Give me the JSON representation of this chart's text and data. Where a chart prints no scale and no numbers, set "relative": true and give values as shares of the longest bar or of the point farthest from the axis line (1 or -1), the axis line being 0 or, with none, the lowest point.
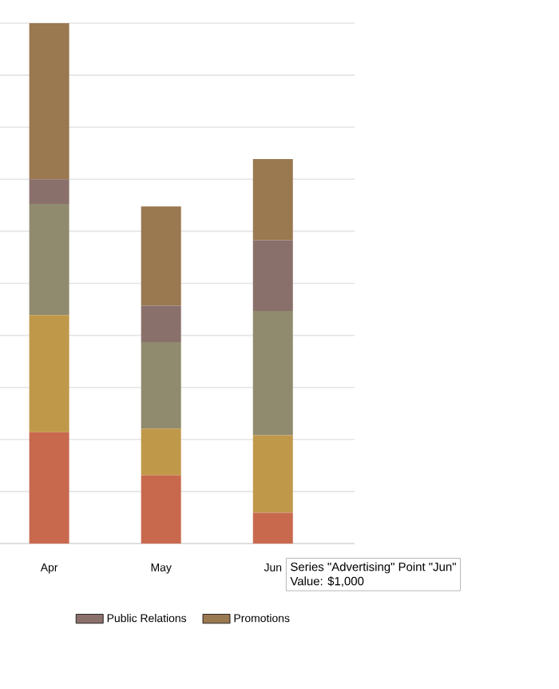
{
  "chart_data": {
    "type": "bar",
    "stacked": true,
    "relative": true,
    "grid": "y",
    "legend": "bottom",
    "categories": [
      "Apr",
      "May",
      "Jun"
    ],
    "series": [
      {
        "color": "#c8694e",
        "values": [
          0.214,
          0.131,
          0.059
        ]
      },
      {
        "color": "#c0984a",
        "values": [
          0.225,
          0.09,
          0.149
        ]
      },
      {
        "color": "#908b6e",
        "values": [
          0.214,
          0.166,
          0.239
        ]
      },
      {
        "name": "Public Relations",
        "color": "#8a706b",
        "values": [
          0.047,
          0.07,
          0.136
        ]
      },
      {
        "name": "Promotions",
        "color": "#9a7850",
        "values": [
          0.3,
          0.191,
          0.156
        ]
      }
    ],
    "annotations": [
      "Series \"Advertising\" Point \"Jun\"",
      "Value:  $1,000"
    ]
  }
}
